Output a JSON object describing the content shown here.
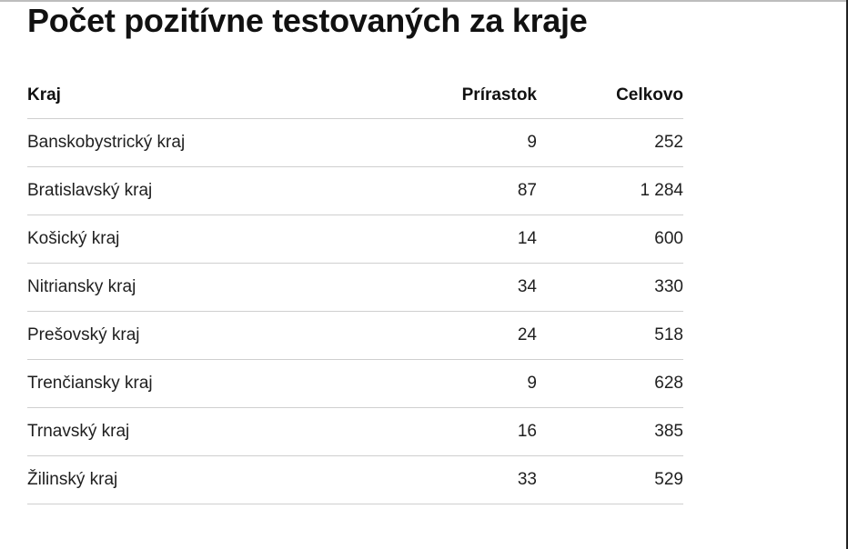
{
  "title": "Počet pozitívne testovaných za kraje",
  "chart_data": {
    "type": "table",
    "title": "Počet pozitívne testovaných za kraje",
    "columns": [
      "Kraj",
      "Prírastok",
      "Celkovo"
    ],
    "rows": [
      {
        "region": "Banskobystrický kraj",
        "increase": "9",
        "total": "252"
      },
      {
        "region": "Bratislavský kraj",
        "increase": "87",
        "total": "1 284"
      },
      {
        "region": "Košický kraj",
        "increase": "14",
        "total": "600"
      },
      {
        "region": "Nitriansky kraj",
        "increase": "34",
        "total": "330"
      },
      {
        "region": "Prešovský kraj",
        "increase": "24",
        "total": "518"
      },
      {
        "region": "Trenčiansky kraj",
        "increase": "9",
        "total": "628"
      },
      {
        "region": "Trnavský kraj",
        "increase": "16",
        "total": "385"
      },
      {
        "region": "Žilinský kraj",
        "increase": "33",
        "total": "529"
      }
    ]
  }
}
